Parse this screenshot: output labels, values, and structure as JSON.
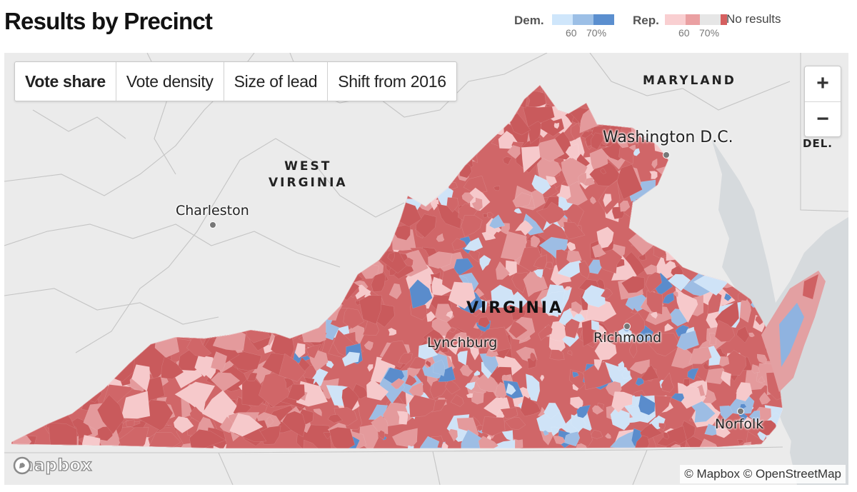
{
  "page": {
    "title": "Results by Precinct"
  },
  "legend": {
    "dem": {
      "label": "Dem.",
      "colors": [
        "#cfe6fb",
        "#9cbfe6",
        "#5b8fcf"
      ],
      "ticks": [
        "60",
        "70%"
      ]
    },
    "rep": {
      "label": "Rep.",
      "colors": [
        "#f9cfd1",
        "#eaa0a2",
        "#d55f5f"
      ],
      "ticks": [
        "60",
        "70%"
      ]
    },
    "no_results": {
      "label": "No results",
      "color": "#e6e6e6"
    }
  },
  "tabs": [
    {
      "label": "Vote share",
      "active": true
    },
    {
      "label": "Vote density",
      "active": false
    },
    {
      "label": "Size of lead",
      "active": false
    },
    {
      "label": "Shift from 2016",
      "active": false
    }
  ],
  "zoom": {
    "in_label": "+",
    "out_label": "−"
  },
  "map": {
    "states": {
      "west_virginia": [
        "WEST",
        "VIRGINIA"
      ],
      "maryland": "MARYLAND",
      "delaware": "DEL.",
      "virginia": "VIRGINIA"
    },
    "cities": {
      "charleston": "Charleston",
      "washington": "Washington D.C.",
      "lynchburg": "Lynchburg",
      "richmond": "Richmond",
      "norfolk": "Norfolk"
    },
    "attribution": "© Mapbox © OpenStreetMap",
    "logo": "mapbox",
    "colors": {
      "base": "#d06668",
      "rep_dark": "#c95a5c",
      "rep_mid": "#e49a9c",
      "rep_light": "#f6c9cb",
      "dem_light": "#cfe3f7",
      "dem_mid": "#9dbde4",
      "dem_dark": "#5a8ccc",
      "water": "#d9dde0",
      "land": "#ebebeb"
    }
  }
}
